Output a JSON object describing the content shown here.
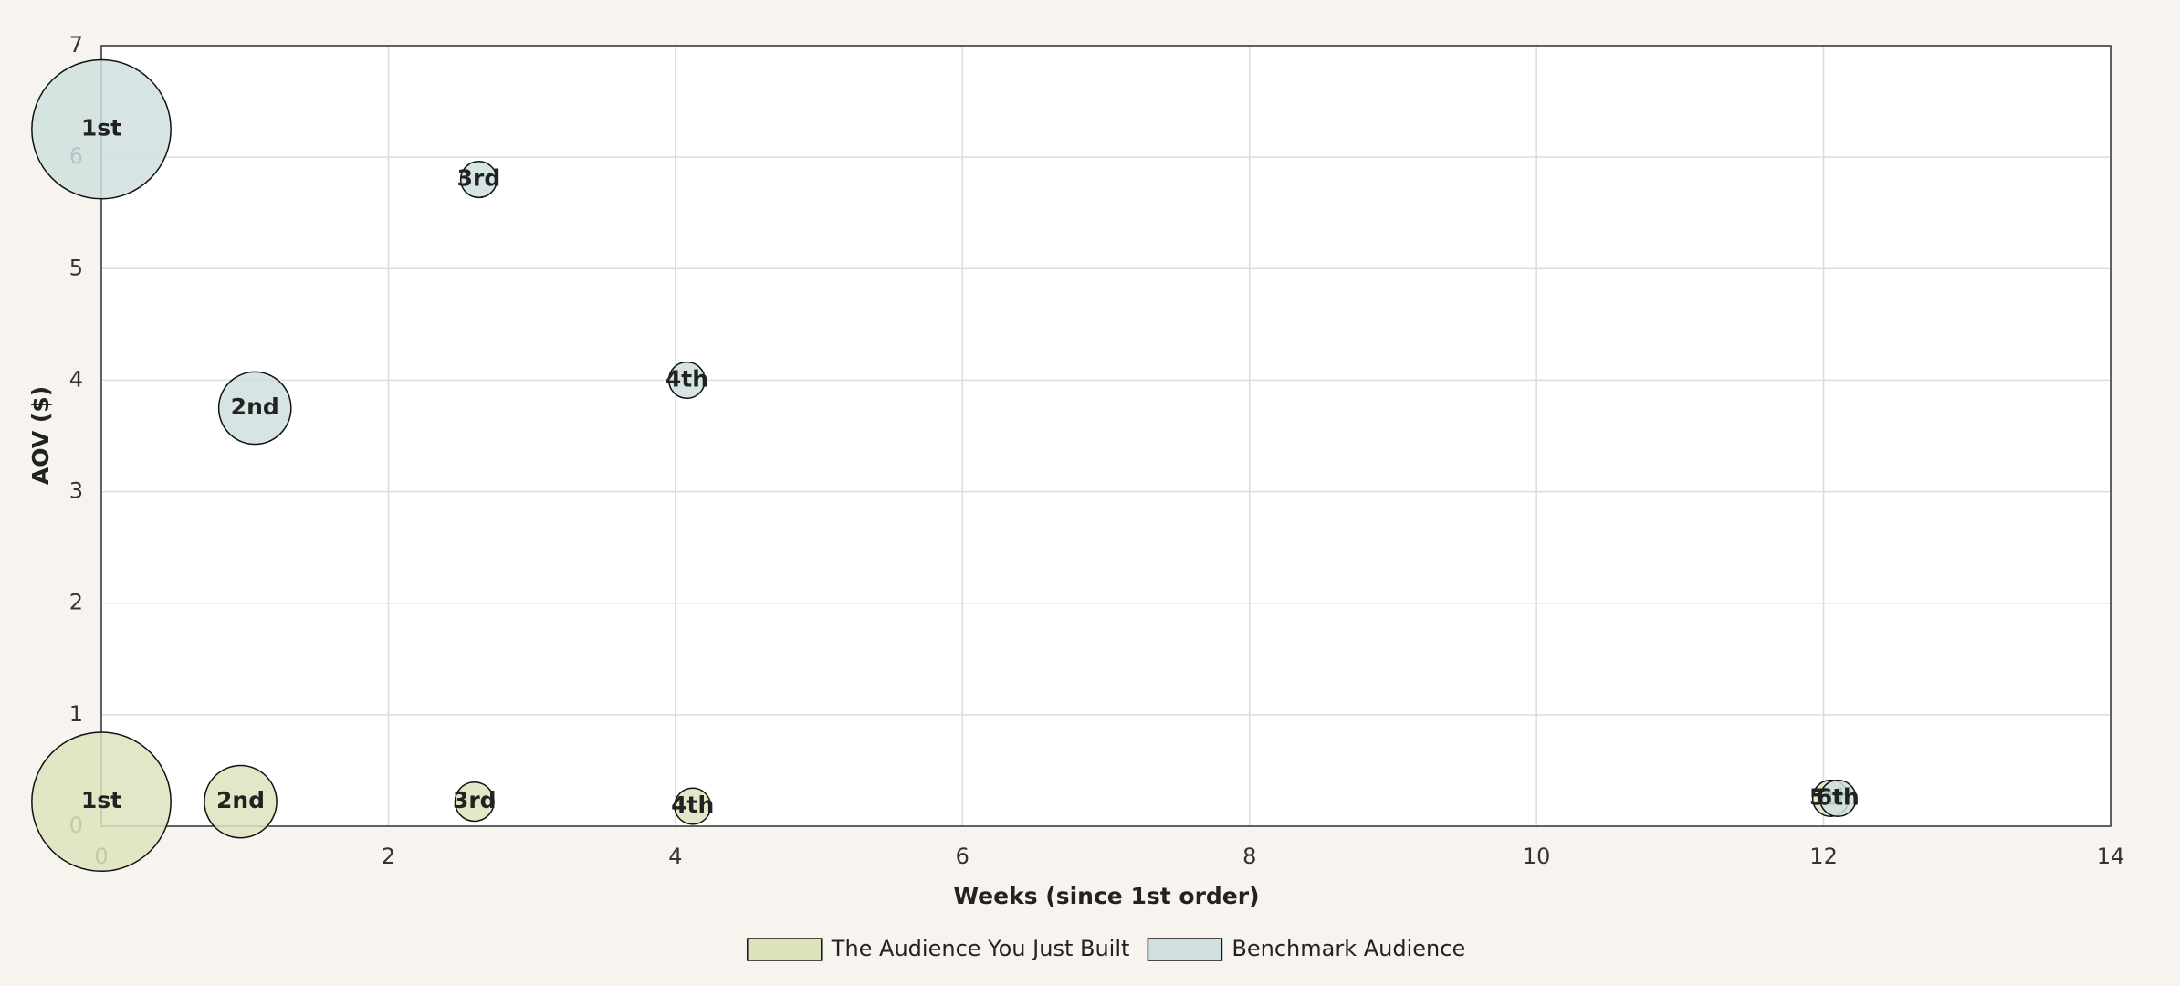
{
  "chart_data": {
    "type": "bubble",
    "xlabel": "Weeks (since 1st order)",
    "ylabel": "AOV ($)",
    "xlim": [
      0,
      14
    ],
    "xticks": [
      0,
      2,
      4,
      6,
      8,
      10,
      12,
      14
    ],
    "ylim": [
      0,
      7
    ],
    "yticks": [
      0,
      1,
      2,
      3,
      4,
      5,
      6,
      7
    ],
    "grid": true,
    "legend": "bottom",
    "series": [
      {
        "name": "The Audience You Just Built",
        "color": "#dde3bd",
        "x": [
          0,
          0.97,
          2.6,
          4.12,
          12.05
        ],
        "values": [
          0.22,
          0.22,
          0.22,
          0.18,
          0.25
        ],
        "sizes": [
          50,
          26,
          14,
          13,
          13
        ],
        "labels": [
          "1st",
          "2nd",
          "3rd",
          "4th",
          "5th"
        ]
      },
      {
        "name": "Benchmark Audience",
        "color": "#cfe0de",
        "x": [
          0,
          1.07,
          2.63,
          4.08,
          12.1
        ],
        "values": [
          6.25,
          3.75,
          5.8,
          4.0,
          0.25
        ],
        "sizes": [
          50,
          26,
          13,
          13,
          13
        ],
        "labels": [
          "1st",
          "2nd",
          "3rd",
          "4th",
          "6th"
        ]
      }
    ]
  }
}
